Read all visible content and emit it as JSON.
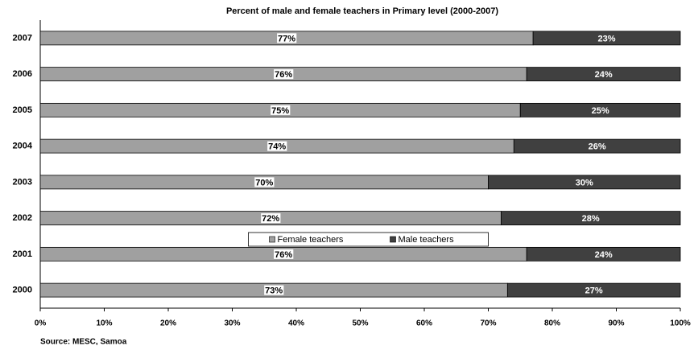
{
  "chart_data": {
    "type": "stacked_barh",
    "title": "Percent of male and female teachers in Primary level (2000-2007)",
    "source": "Source: MESC, Samoa",
    "categories": [
      "2007",
      "2006",
      "2005",
      "2004",
      "2003",
      "2002",
      "2001",
      "2000"
    ],
    "series": [
      {
        "name": "Female teachers",
        "color": "#a0a0a0",
        "values": [
          77,
          76,
          75,
          74,
          70,
          72,
          76,
          73
        ],
        "value_labels": [
          "77%",
          "76%",
          "75%",
          "74%",
          "70%",
          "72%",
          "76%",
          "73%"
        ]
      },
      {
        "name": "Male teachers",
        "color": "#404040",
        "values": [
          23,
          24,
          25,
          26,
          30,
          28,
          24,
          27
        ],
        "value_labels": [
          "23%",
          "24%",
          "25%",
          "26%",
          "30%",
          "28%",
          "24%",
          "27%"
        ]
      }
    ],
    "xlim": [
      0,
      100
    ],
    "xticks": [
      {
        "value": 0,
        "label": "0%"
      },
      {
        "value": 10,
        "label": "10%"
      },
      {
        "value": 20,
        "label": "20%"
      },
      {
        "value": 30,
        "label": "30%"
      },
      {
        "value": 40,
        "label": "40%"
      },
      {
        "value": 50,
        "label": "50%"
      },
      {
        "value": 60,
        "label": "60%"
      },
      {
        "value": 70,
        "label": "70%"
      },
      {
        "value": 80,
        "label": "80%"
      },
      {
        "value": 90,
        "label": "90%"
      },
      {
        "value": 100,
        "label": "100%"
      }
    ],
    "legend": "center"
  }
}
